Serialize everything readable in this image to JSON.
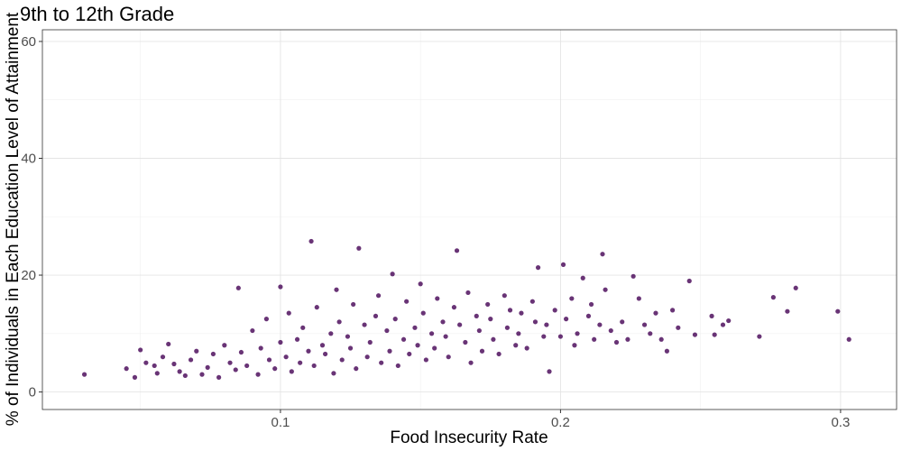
{
  "chart_data": {
    "type": "scatter",
    "title": "9th to 12th Grade",
    "xlabel": "Food Insecurity Rate",
    "ylabel": "% of Individuals in Each Education Level of Attainment",
    "xlim": [
      0.015,
      0.32
    ],
    "ylim": [
      -3,
      62
    ],
    "x_ticks": [
      0.1,
      0.2,
      0.3
    ],
    "x_tick_labels": [
      "0.1",
      "0.2",
      "0.3"
    ],
    "y_ticks": [
      0,
      20,
      40,
      60
    ],
    "y_tick_labels": [
      "0",
      "20",
      "40",
      "60"
    ],
    "grid": true,
    "legend": "none",
    "point_color": "#440154",
    "point_opacity": 0.8,
    "points": [
      [
        0.03,
        3.0
      ],
      [
        0.045,
        4.0
      ],
      [
        0.048,
        2.5
      ],
      [
        0.05,
        7.2
      ],
      [
        0.052,
        5.0
      ],
      [
        0.055,
        4.5
      ],
      [
        0.056,
        3.2
      ],
      [
        0.058,
        6.0
      ],
      [
        0.06,
        8.2
      ],
      [
        0.062,
        4.8
      ],
      [
        0.064,
        3.5
      ],
      [
        0.066,
        2.8
      ],
      [
        0.068,
        5.5
      ],
      [
        0.07,
        7.0
      ],
      [
        0.072,
        3.0
      ],
      [
        0.074,
        4.2
      ],
      [
        0.076,
        6.5
      ],
      [
        0.078,
        2.5
      ],
      [
        0.08,
        8.0
      ],
      [
        0.082,
        5.0
      ],
      [
        0.084,
        3.8
      ],
      [
        0.085,
        17.8
      ],
      [
        0.086,
        6.8
      ],
      [
        0.088,
        4.5
      ],
      [
        0.09,
        10.5
      ],
      [
        0.092,
        3.0
      ],
      [
        0.093,
        7.5
      ],
      [
        0.095,
        12.5
      ],
      [
        0.096,
        5.5
      ],
      [
        0.098,
        4.0
      ],
      [
        0.1,
        18.0
      ],
      [
        0.1,
        8.5
      ],
      [
        0.102,
        6.0
      ],
      [
        0.103,
        13.5
      ],
      [
        0.104,
        3.5
      ],
      [
        0.106,
        9.0
      ],
      [
        0.107,
        5.0
      ],
      [
        0.108,
        11.0
      ],
      [
        0.11,
        7.0
      ],
      [
        0.111,
        25.8
      ],
      [
        0.112,
        4.5
      ],
      [
        0.113,
        14.5
      ],
      [
        0.115,
        8.0
      ],
      [
        0.116,
        6.5
      ],
      [
        0.118,
        10.0
      ],
      [
        0.119,
        3.2
      ],
      [
        0.12,
        17.5
      ],
      [
        0.121,
        12.0
      ],
      [
        0.122,
        5.5
      ],
      [
        0.124,
        9.5
      ],
      [
        0.125,
        7.5
      ],
      [
        0.126,
        15.0
      ],
      [
        0.127,
        4.0
      ],
      [
        0.128,
        24.6
      ],
      [
        0.13,
        11.5
      ],
      [
        0.131,
        6.0
      ],
      [
        0.132,
        8.5
      ],
      [
        0.134,
        13.0
      ],
      [
        0.135,
        16.5
      ],
      [
        0.136,
        5.0
      ],
      [
        0.138,
        10.5
      ],
      [
        0.139,
        7.0
      ],
      [
        0.14,
        20.2
      ],
      [
        0.141,
        12.5
      ],
      [
        0.142,
        4.5
      ],
      [
        0.144,
        9.0
      ],
      [
        0.145,
        15.5
      ],
      [
        0.146,
        6.5
      ],
      [
        0.148,
        11.0
      ],
      [
        0.149,
        8.0
      ],
      [
        0.15,
        18.5
      ],
      [
        0.151,
        13.5
      ],
      [
        0.152,
        5.5
      ],
      [
        0.154,
        10.0
      ],
      [
        0.155,
        7.5
      ],
      [
        0.156,
        16.0
      ],
      [
        0.158,
        12.0
      ],
      [
        0.159,
        9.5
      ],
      [
        0.16,
        6.0
      ],
      [
        0.162,
        14.5
      ],
      [
        0.163,
        24.2
      ],
      [
        0.164,
        11.5
      ],
      [
        0.166,
        8.5
      ],
      [
        0.167,
        17.0
      ],
      [
        0.168,
        5.0
      ],
      [
        0.17,
        13.0
      ],
      [
        0.171,
        10.5
      ],
      [
        0.172,
        7.0
      ],
      [
        0.174,
        15.0
      ],
      [
        0.175,
        12.5
      ],
      [
        0.176,
        9.0
      ],
      [
        0.178,
        6.5
      ],
      [
        0.18,
        16.5
      ],
      [
        0.181,
        11.0
      ],
      [
        0.182,
        14.0
      ],
      [
        0.184,
        8.0
      ],
      [
        0.185,
        10.0
      ],
      [
        0.186,
        13.5
      ],
      [
        0.188,
        7.5
      ],
      [
        0.19,
        15.5
      ],
      [
        0.191,
        12.0
      ],
      [
        0.192,
        21.3
      ],
      [
        0.194,
        9.5
      ],
      [
        0.195,
        11.5
      ],
      [
        0.196,
        3.5
      ],
      [
        0.198,
        14.0
      ],
      [
        0.2,
        9.5
      ],
      [
        0.201,
        21.8
      ],
      [
        0.202,
        12.5
      ],
      [
        0.204,
        16.0
      ],
      [
        0.205,
        8.0
      ],
      [
        0.206,
        10.0
      ],
      [
        0.208,
        19.5
      ],
      [
        0.21,
        13.0
      ],
      [
        0.211,
        15.0
      ],
      [
        0.212,
        9.0
      ],
      [
        0.214,
        11.5
      ],
      [
        0.215,
        23.6
      ],
      [
        0.216,
        17.5
      ],
      [
        0.218,
        10.5
      ],
      [
        0.22,
        8.5
      ],
      [
        0.222,
        12.0
      ],
      [
        0.224,
        9.0
      ],
      [
        0.226,
        19.8
      ],
      [
        0.228,
        16.0
      ],
      [
        0.23,
        11.5
      ],
      [
        0.232,
        10.0
      ],
      [
        0.234,
        13.5
      ],
      [
        0.236,
        9.0
      ],
      [
        0.238,
        7.0
      ],
      [
        0.24,
        14.0
      ],
      [
        0.242,
        11.0
      ],
      [
        0.246,
        19.0
      ],
      [
        0.248,
        9.8
      ],
      [
        0.254,
        13.0
      ],
      [
        0.255,
        9.8
      ],
      [
        0.258,
        11.5
      ],
      [
        0.26,
        12.2
      ],
      [
        0.271,
        9.5
      ],
      [
        0.276,
        16.2
      ],
      [
        0.281,
        13.8
      ],
      [
        0.284,
        17.8
      ],
      [
        0.299,
        13.8
      ],
      [
        0.303,
        9.0
      ]
    ]
  }
}
